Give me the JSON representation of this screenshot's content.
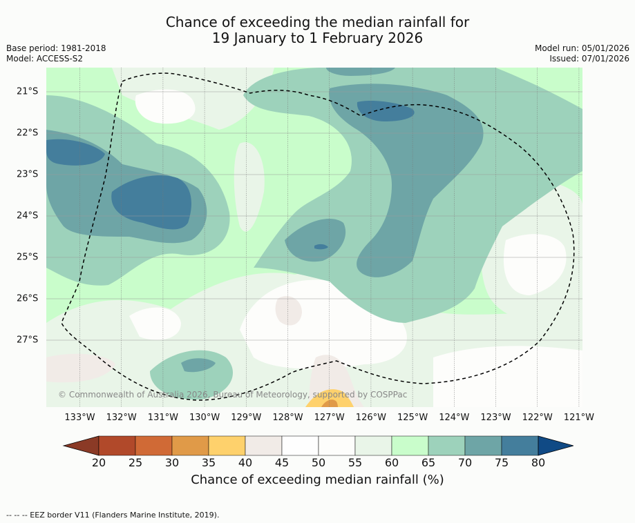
{
  "title": {
    "line1": "Chance of exceeding the median rainfall for",
    "line2": "19 January to 1 February 2026"
  },
  "meta": {
    "base_period": "Base period: 1981-2018",
    "model": "Model: ACCESS-S2",
    "model_run": "Model run: 05/01/2026",
    "issued": "Issued: 07/01/2026"
  },
  "map": {
    "x_ticks": [
      "133°W",
      "132°W",
      "131°W",
      "130°W",
      "129°W",
      "128°W",
      "127°W",
      "126°W",
      "125°W",
      "124°W",
      "123°W",
      "122°W",
      "121°W"
    ],
    "y_ticks": [
      "21°S",
      "22°S",
      "23°S",
      "24°S",
      "25°S",
      "26°S",
      "27°S"
    ],
    "copyright": "© Commonwealth of Australia 2026, Bureau of Meteorology, supported by COSPPac",
    "colors": {
      "c40_45": "#f1ebe7",
      "c45_55": "#fdfdfb",
      "c55_60": "#e9f5e8",
      "c60_65": "#c9fdcb",
      "c65_70": "#9dd2bb",
      "c70_75": "#6ea5a6",
      "c75_80": "#447e9c",
      "c35_40": "#fed16c",
      "c30_35": "#e09a48"
    }
  },
  "colorbar": {
    "ticks": [
      "20",
      "25",
      "30",
      "35",
      "40",
      "45",
      "50",
      "55",
      "60",
      "65",
      "70",
      "75",
      "80"
    ],
    "colors": [
      "#8b3a26",
      "#b1492a",
      "#d06a36",
      "#e09a48",
      "#fed16c",
      "#f1ebe7",
      "#fefefe",
      "#fdfdfb",
      "#e9f5e8",
      "#c9fdcb",
      "#9dd2bb",
      "#6ea5a6",
      "#447e9c",
      "#104a85"
    ],
    "label": "Chance of exceeding median rainfall (%)"
  },
  "footnote": "--  --  -- EEZ border V11 (Flanders Marine Institute, 2019)."
}
